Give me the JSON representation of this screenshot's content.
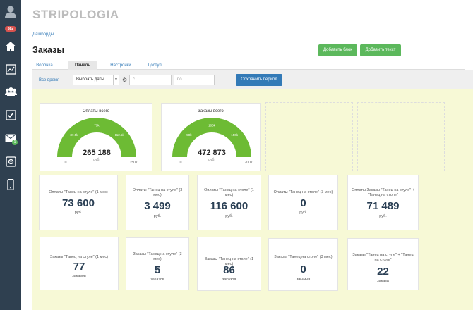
{
  "sidebar": {
    "badge": "382",
    "mail_badge": "1"
  },
  "header": {
    "logo": "STRIPOLOGIA",
    "breadcrumb": "Дашборды",
    "title": "Заказы",
    "add_block": "Добавить блок",
    "add_text": "Добавить текст"
  },
  "tabs": [
    "Воронка",
    "Панель",
    "Настройки",
    "Доступ"
  ],
  "filter": {
    "all_time": "Все время",
    "select": "Выбрать даты",
    "from_placeholder": "с",
    "to_placeholder": "по",
    "save": "Сохранить период"
  },
  "gauges": [
    {
      "title": "Оплаты всего",
      "value": "265 188",
      "unit": "руб.",
      "min": "0",
      "max": "150k",
      "t1": "37.5k",
      "t2": "75k",
      "t3": "112.5k",
      "fill": 1.0,
      "color": "#6dbb34"
    },
    {
      "title": "Заказы всего",
      "value": "472 873",
      "unit": "руб.",
      "min": "0",
      "max": "200k",
      "t1": "50k",
      "t2": "100k",
      "t3": "150k",
      "fill": 1.0,
      "color": "#6dbb34"
    }
  ],
  "row1": [
    {
      "label": "Оплаты \"Танец на стуле\" (1 мес)",
      "value": "73 600",
      "unit": "руб."
    },
    {
      "label": "Оплаты \"Танец на стуле\" (3 мес)",
      "value": "3 499",
      "unit": "руб."
    },
    {
      "label": "Оплаты \"Танец на столе\" (1 мес)",
      "value": "116 600",
      "unit": "руб."
    },
    {
      "label": "Оплаты \"Танец на столе\" (3 мес)",
      "value": "0",
      "unit": "руб."
    },
    {
      "label": "Оплаты Заказы \"Танец на стуле\" + \"Танец на столе\"",
      "value": "71 489",
      "unit": "руб."
    }
  ],
  "row2": [
    {
      "label": "Заказы \"Танец на стуле\" (1 мес)",
      "value": "77",
      "unit": "заказов"
    },
    {
      "label": "Заказы \"Танец на стуле\" (3 мес)",
      "value": "5",
      "unit": "заказов"
    },
    {
      "label": "Заказы \"Танец на столе\" (1 мес)",
      "value": "86",
      "unit": "заказов"
    },
    {
      "label": "Заказы \"Танец на столе\" (3 мес)",
      "value": "0",
      "unit": "заказов"
    },
    {
      "label": "Заказы \"Танец на стуле\" + \"Танец на столе\"",
      "value": "22",
      "unit": "заказа"
    }
  ]
}
